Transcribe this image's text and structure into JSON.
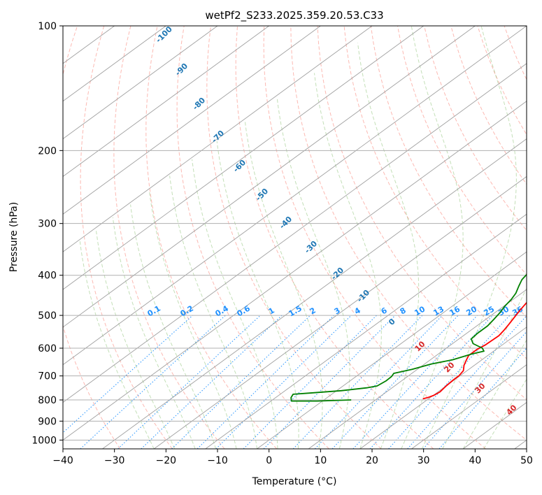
{
  "chart_data": {
    "type": "line",
    "title": "wetPf2_S233.2025.359.20.53.C33",
    "xlabel": "Temperature (°C)",
    "ylabel": "Pressure (hPa)",
    "xlim": [
      -40,
      50
    ],
    "ylim": [
      1050,
      100
    ],
    "x_ticks": [
      "−40",
      "−30",
      "−20",
      "−10",
      "0",
      "10",
      "20",
      "30",
      "40",
      "50"
    ],
    "y_ticks": [
      "100",
      "200",
      "300",
      "400",
      "500",
      "600",
      "700",
      "800",
      "900",
      "1000"
    ],
    "skew_deg_per_log": 110,
    "series": [
      {
        "name": "Temperature",
        "color": "#ff0000",
        "points": [
          [
            18.9,
            795
          ],
          [
            19.5,
            790
          ],
          [
            20.1,
            780
          ],
          [
            20.4,
            765
          ],
          [
            20.0,
            740
          ],
          [
            19.8,
            715
          ],
          [
            19.8,
            700
          ],
          [
            19.3,
            680
          ],
          [
            18.0,
            660
          ],
          [
            17.0,
            640
          ],
          [
            16.3,
            625
          ],
          [
            16.3,
            605
          ],
          [
            16.7,
            590
          ],
          [
            16.9,
            560
          ],
          [
            16.5,
            545
          ],
          [
            15.8,
            525
          ],
          [
            15.0,
            505
          ],
          [
            14.2,
            485
          ],
          [
            13.3,
            460
          ],
          [
            12.3,
            440
          ],
          [
            11.3,
            420
          ],
          [
            10.6,
            400
          ],
          [
            9.7,
            385
          ],
          [
            8.5,
            365
          ],
          [
            7.3,
            345
          ],
          [
            5.7,
            325
          ],
          [
            4.7,
            305
          ],
          [
            4.0,
            290
          ],
          [
            3.1,
            275
          ],
          [
            1.9,
            255
          ],
          [
            0.3,
            235
          ],
          [
            -1.7,
            215
          ],
          [
            -3.1,
            200
          ],
          [
            -3.4,
            193
          ],
          [
            -2.7,
            187
          ],
          [
            -1.0,
            180
          ],
          [
            -0.9,
            175
          ],
          [
            1.3,
            160
          ],
          [
            3.9,
            145
          ],
          [
            5.1,
            140
          ],
          [
            7.1,
            135
          ],
          [
            10.2,
            128
          ],
          [
            13.6,
            122
          ],
          [
            16.5,
            116
          ],
          [
            20.2,
            110
          ],
          [
            24.5,
            104
          ],
          [
            27.0,
            100
          ]
        ]
      },
      {
        "name": "Dewpoint",
        "color": "#008000",
        "points": [
          [
            5.3,
            800
          ],
          [
            -1.0,
            805
          ],
          [
            -6.0,
            805
          ],
          [
            -7.0,
            790
          ],
          [
            -7.5,
            775
          ],
          [
            -4.6,
            770
          ],
          [
            0.9,
            760
          ],
          [
            5.1,
            748
          ],
          [
            6.6,
            740
          ],
          [
            7.0,
            720
          ],
          [
            6.9,
            702
          ],
          [
            6.5,
            690
          ],
          [
            9.0,
            675
          ],
          [
            11.3,
            655
          ],
          [
            14.3,
            640
          ],
          [
            16.5,
            620
          ],
          [
            18.1,
            610
          ],
          [
            17.0,
            600
          ],
          [
            14.0,
            585
          ],
          [
            12.4,
            570
          ],
          [
            12.1,
            552
          ],
          [
            12.1,
            530
          ],
          [
            11.6,
            512
          ],
          [
            11.0,
            493
          ],
          [
            10.2,
            475
          ],
          [
            9.7,
            458
          ],
          [
            8.9,
            442
          ],
          [
            7.6,
            425
          ],
          [
            6.5,
            410
          ],
          [
            5.9,
            395
          ],
          [
            6.5,
            380
          ],
          [
            5.9,
            368
          ],
          [
            3.9,
            355
          ],
          [
            1.6,
            342
          ],
          [
            -0.4,
            332
          ],
          [
            -1.5,
            322
          ],
          [
            -1.6,
            310
          ],
          [
            -2.3,
            295
          ],
          [
            -3.4,
            280
          ],
          [
            -3.5,
            265
          ],
          [
            -3.2,
            250
          ],
          [
            -3.4,
            235
          ],
          [
            -5.1,
            225
          ],
          [
            -9.2,
            217
          ],
          [
            -14.3,
            210
          ],
          [
            -17.6,
            205
          ],
          [
            -20.0,
            195
          ],
          [
            -21.7,
            187
          ],
          [
            -23.6,
            180
          ],
          [
            -24.2,
            173
          ],
          [
            -23.5,
            167
          ],
          [
            -21.6,
            160
          ],
          [
            -19.2,
            152
          ],
          [
            -18.1,
            143
          ],
          [
            -18.3,
            133
          ],
          [
            -17.5,
            127
          ],
          [
            -15.5,
            121
          ],
          [
            -12.8,
            115
          ],
          [
            -10.9,
            110
          ],
          [
            -9.7,
            104
          ],
          [
            -8.7,
            100
          ]
        ]
      }
    ],
    "background_lines": {
      "dry_adiabats_labels": [
        "-100",
        "-90",
        "-80",
        "-70",
        "-60",
        "-50",
        "-40",
        "-30",
        "-20",
        "-10",
        "0"
      ],
      "moist_adiabats_labels": [
        "10",
        "20",
        "30",
        "40"
      ],
      "mixing_ratio_labels": [
        "0.1",
        "0.2",
        "0.4",
        "0.6",
        "1",
        "1.5",
        "2",
        "3",
        "4",
        "6",
        "8",
        "10",
        "13",
        "16",
        "20",
        "25",
        "30",
        "36"
      ]
    }
  }
}
